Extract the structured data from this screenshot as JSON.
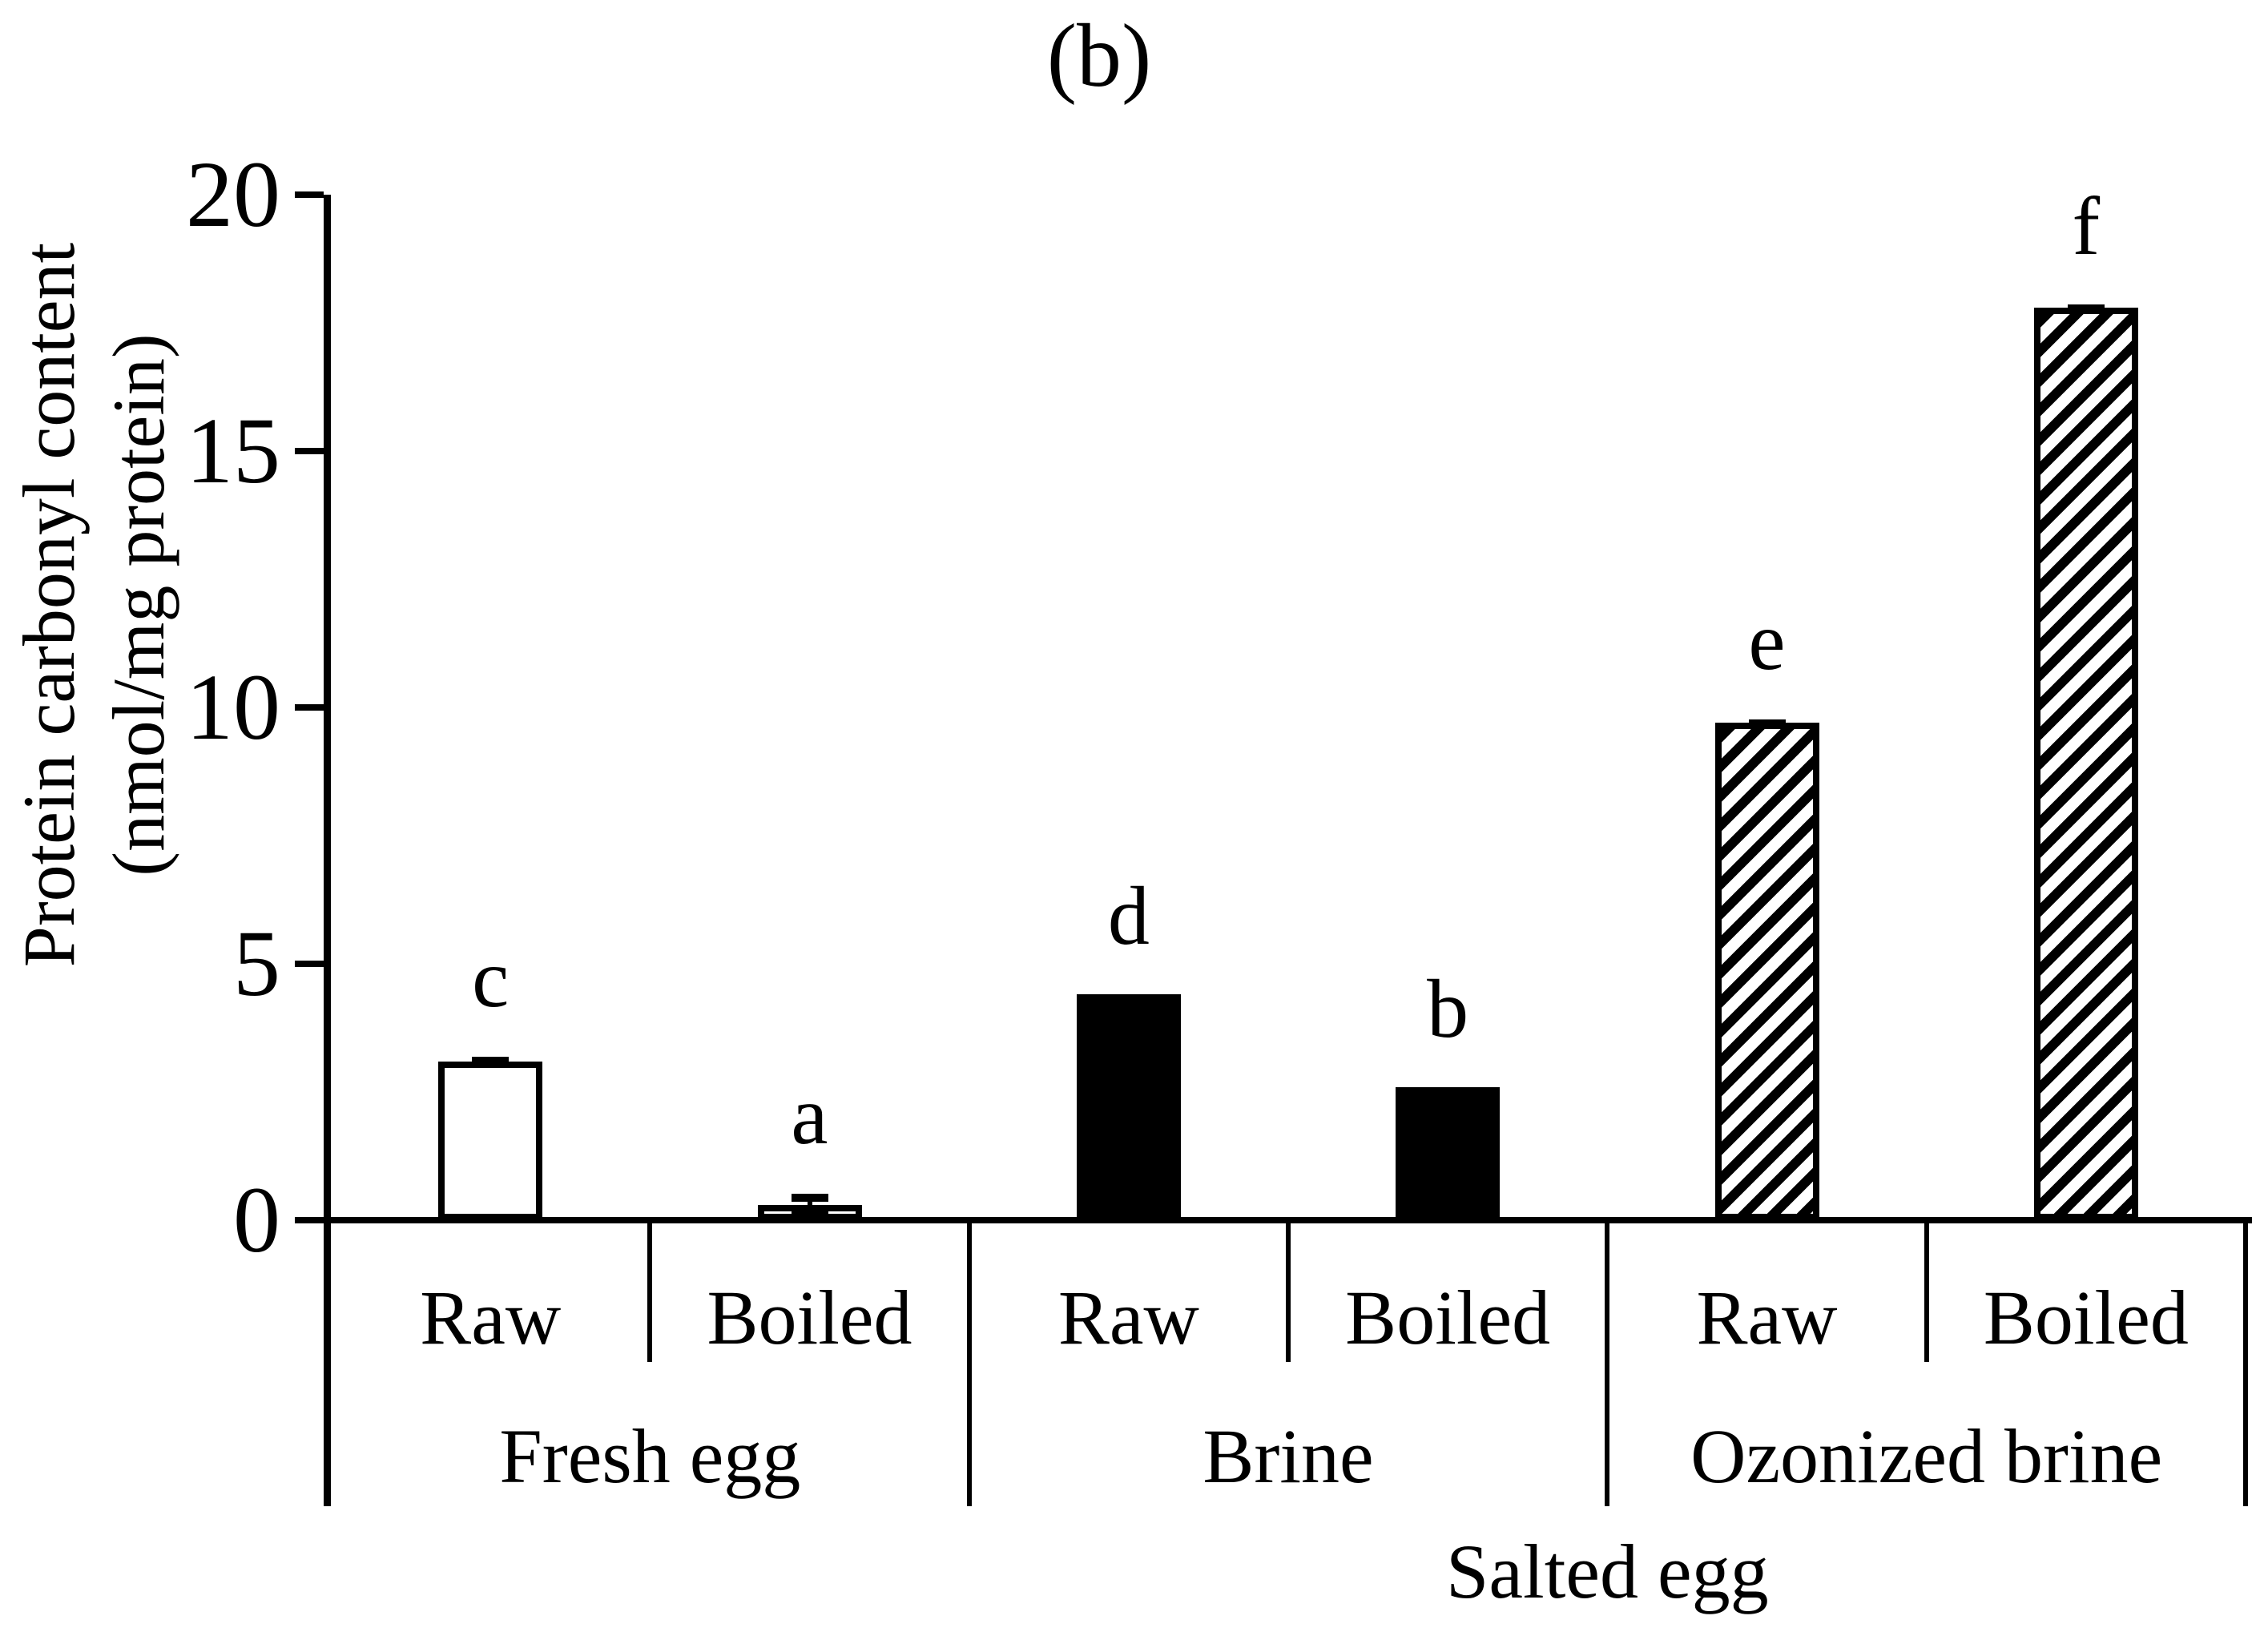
{
  "title": "(b)",
  "y_axis": {
    "label_line1": "Protein carbonyl content",
    "label_line2": "(nmol/mg protein)",
    "tick_labels": [
      "0",
      "5",
      "10",
      "15",
      "20"
    ]
  },
  "x_axis": {
    "category_labels": [
      "Raw",
      "Boiled",
      "Raw",
      "Boiled",
      "Raw",
      "Boiled"
    ],
    "group_labels": [
      "Fresh egg",
      "Brine",
      "Ozonized brine"
    ],
    "overall_label": "Salted egg"
  },
  "chart_data": {
    "type": "bar",
    "title": "(b)",
    "ylabel": "Protein carbonyl content (nmol/mg protein)",
    "ylabel_line1": "Protein carbonyl content",
    "ylabel_line2": "(nmol/mg protein)",
    "xlabel": "Salted egg",
    "ylim": [
      0,
      20
    ],
    "yticks": [
      0,
      5,
      10,
      15,
      20
    ],
    "grid": false,
    "legend": "none",
    "colors": {
      "ink": "#000000",
      "background": "#ffffff"
    },
    "groups": [
      {
        "label": "Fresh egg",
        "bar_style": "white",
        "bars": [
          {
            "category": "Raw",
            "value": 3.1,
            "letter": "c",
            "error_plus": 0.08,
            "error_minus": 0
          },
          {
            "category": "Boiled",
            "value": 0.3,
            "letter": "a",
            "error_plus": 0.22,
            "error_minus": 0.22
          }
        ]
      },
      {
        "label": "Brine",
        "bar_style": "black",
        "bars": [
          {
            "category": "Raw",
            "value": 4.4,
            "letter": "d",
            "error_plus": 0,
            "error_minus": 0
          },
          {
            "category": "Boiled",
            "value": 2.6,
            "letter": "b",
            "error_plus": 0,
            "error_minus": 0
          }
        ]
      },
      {
        "label": "Ozonized brine",
        "bar_style": "hatch",
        "bars": [
          {
            "category": "Raw",
            "value": 9.7,
            "letter": "e",
            "error_plus": 0.06,
            "error_minus": 0
          },
          {
            "category": "Boiled",
            "value": 17.8,
            "letter": "f",
            "error_plus": 0.06,
            "error_minus": 0
          }
        ]
      }
    ],
    "salted_egg_spans_groups": [
      "Brine",
      "Ozonized brine"
    ]
  }
}
